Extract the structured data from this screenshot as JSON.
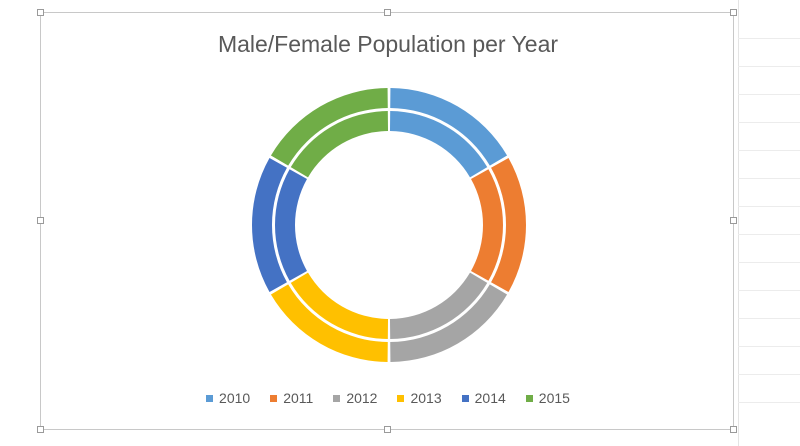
{
  "chart_data": {
    "type": "pie",
    "subtype": "doughnut",
    "title": "Male/Female Population per Year",
    "categories": [
      "2010",
      "2011",
      "2012",
      "2013",
      "2014",
      "2015"
    ],
    "colors": [
      "#5B9BD5",
      "#ED7D31",
      "#A5A5A5",
      "#FFC000",
      "#4472C4",
      "#70AD47"
    ],
    "series": [
      {
        "values": [
          16.7,
          16.6,
          16.7,
          16.7,
          16.6,
          16.7
        ]
      },
      {
        "values": [
          16.7,
          16.6,
          16.7,
          16.7,
          16.6,
          16.7
        ]
      }
    ],
    "legend_position": "bottom",
    "grid": false
  }
}
